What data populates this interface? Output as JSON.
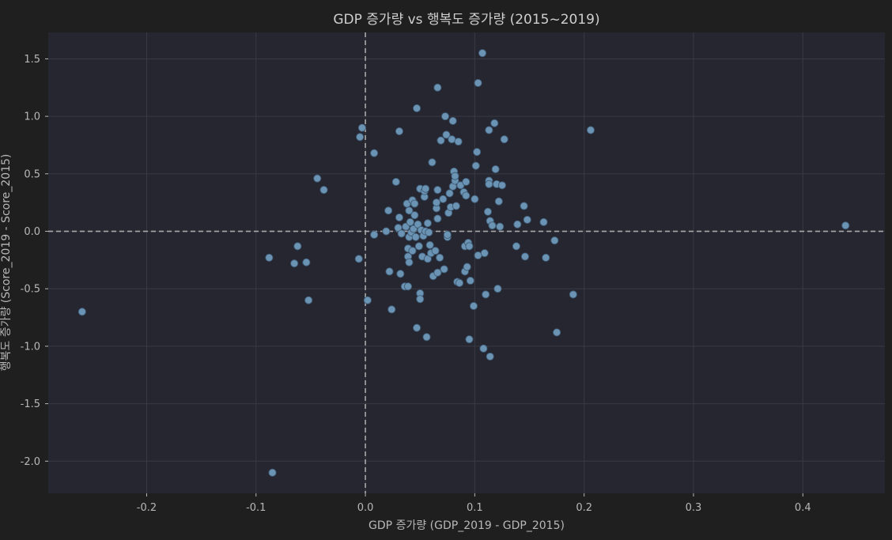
{
  "chart_data": {
    "type": "scatter",
    "title": "GDP 증가량 vs 행복도 증가량 (2015~2019)",
    "xlabel": "GDP 증가량 (GDP_2019 - GDP_2015)",
    "ylabel": "행복도 증가량 (Score_2019 - Score_2015)",
    "xlim": [
      -0.29,
      0.475
    ],
    "ylim": [
      -2.28,
      1.73
    ],
    "xticks": [
      -0.2,
      -0.1,
      0.0,
      0.1,
      0.2,
      0.3,
      0.4
    ],
    "xtick_labels": [
      "-0.2",
      "-0.1",
      "0.0",
      "0.1",
      "0.2",
      "0.3",
      "0.4"
    ],
    "yticks": [
      1.5,
      1.0,
      0.5,
      0.0,
      -0.5,
      -1.0,
      -1.5,
      -2.0
    ],
    "ytick_labels": [
      "1.5",
      "1.0",
      "0.5",
      "0.0",
      "-0.5",
      "-1.0",
      "-1.5",
      "-2.0"
    ],
    "grid": true,
    "reference_lines": {
      "x": 0,
      "y": 0
    },
    "colors": {
      "figure_bg": "#1f1f1f",
      "axes_bg": "#262631",
      "grid": "#3a3a44",
      "point_fill": "#6a93b4",
      "point_edge": "#3f5a73",
      "ref_line": "#aaaaaa",
      "text": "#b8b8b8",
      "title": "#cfcfcf"
    },
    "points": [
      [
        -0.259,
        -0.7
      ],
      [
        -0.085,
        -2.1
      ],
      [
        -0.088,
        -0.23
      ],
      [
        -0.062,
        -0.13
      ],
      [
        -0.065,
        -0.28
      ],
      [
        -0.054,
        -0.27
      ],
      [
        -0.052,
        -0.6
      ],
      [
        -0.044,
        0.46
      ],
      [
        -0.038,
        0.36
      ],
      [
        -0.006,
        -0.24
      ],
      [
        -0.005,
        0.82
      ],
      [
        -0.003,
        0.9
      ],
      [
        0.002,
        -0.6
      ],
      [
        0.008,
        0.68
      ],
      [
        0.008,
        -0.03
      ],
      [
        0.019,
        0.0
      ],
      [
        0.021,
        0.18
      ],
      [
        0.022,
        -0.35
      ],
      [
        0.024,
        -0.68
      ],
      [
        0.028,
        0.43
      ],
      [
        0.03,
        0.03
      ],
      [
        0.031,
        0.12
      ],
      [
        0.031,
        0.87
      ],
      [
        0.032,
        -0.37
      ],
      [
        0.033,
        -0.02
      ],
      [
        0.036,
        -0.48
      ],
      [
        0.037,
        0.04
      ],
      [
        0.038,
        0.24
      ],
      [
        0.039,
        -0.48
      ],
      [
        0.039,
        -0.15
      ],
      [
        0.039,
        -0.22
      ],
      [
        0.04,
        -0.27
      ],
      [
        0.04,
        -0.05
      ],
      [
        0.04,
        0.18
      ],
      [
        0.041,
        0.08
      ],
      [
        0.042,
        -0.01
      ],
      [
        0.043,
        -0.17
      ],
      [
        0.043,
        0.27
      ],
      [
        0.044,
        0.02
      ],
      [
        0.045,
        0.14
      ],
      [
        0.045,
        0.24
      ],
      [
        0.046,
        -0.05
      ],
      [
        0.047,
        -0.84
      ],
      [
        0.047,
        1.07
      ],
      [
        0.048,
        0.06
      ],
      [
        0.049,
        -0.13
      ],
      [
        0.05,
        -0.54
      ],
      [
        0.05,
        -0.59
      ],
      [
        0.05,
        0.37
      ],
      [
        0.051,
        0.01
      ],
      [
        0.052,
        -0.22
      ],
      [
        0.053,
        -0.04
      ],
      [
        0.054,
        0.3
      ],
      [
        0.054,
        0.35
      ],
      [
        0.055,
        0.37
      ],
      [
        0.055,
        0.0
      ],
      [
        0.056,
        -0.92
      ],
      [
        0.057,
        -0.24
      ],
      [
        0.057,
        0.07
      ],
      [
        0.058,
        -0.01
      ],
      [
        0.059,
        -0.12
      ],
      [
        0.06,
        -0.19
      ],
      [
        0.061,
        0.6
      ],
      [
        0.062,
        -0.39
      ],
      [
        0.064,
        -0.17
      ],
      [
        0.065,
        0.2
      ],
      [
        0.065,
        0.25
      ],
      [
        0.066,
        0.36
      ],
      [
        0.066,
        0.11
      ],
      [
        0.066,
        1.25
      ],
      [
        0.066,
        -0.36
      ],
      [
        0.068,
        -0.23
      ],
      [
        0.069,
        0.79
      ],
      [
        0.071,
        0.28
      ],
      [
        0.072,
        -0.33
      ],
      [
        0.073,
        1.0
      ],
      [
        0.074,
        0.84
      ],
      [
        0.075,
        -0.05
      ],
      [
        0.075,
        -0.03
      ],
      [
        0.076,
        0.16
      ],
      [
        0.077,
        0.33
      ],
      [
        0.078,
        0.21
      ],
      [
        0.079,
        0.8
      ],
      [
        0.08,
        0.96
      ],
      [
        0.08,
        0.39
      ],
      [
        0.081,
        0.52
      ],
      [
        0.082,
        0.44
      ],
      [
        0.082,
        0.48
      ],
      [
        0.083,
        0.22
      ],
      [
        0.084,
        -0.44
      ],
      [
        0.085,
        0.78
      ],
      [
        0.086,
        -0.45
      ],
      [
        0.087,
        0.4
      ],
      [
        0.09,
        0.34
      ],
      [
        0.091,
        -0.13
      ],
      [
        0.091,
        -0.35
      ],
      [
        0.092,
        0.31
      ],
      [
        0.092,
        0.43
      ],
      [
        0.093,
        -0.31
      ],
      [
        0.094,
        -0.1
      ],
      [
        0.095,
        -0.94
      ],
      [
        0.095,
        -0.13
      ],
      [
        0.096,
        -0.43
      ],
      [
        0.099,
        -0.65
      ],
      [
        0.1,
        0.28
      ],
      [
        0.101,
        0.57
      ],
      [
        0.102,
        0.69
      ],
      [
        0.103,
        -0.21
      ],
      [
        0.103,
        1.29
      ],
      [
        0.107,
        1.55
      ],
      [
        0.108,
        -1.02
      ],
      [
        0.109,
        -0.19
      ],
      [
        0.11,
        -0.55
      ],
      [
        0.112,
        0.17
      ],
      [
        0.113,
        0.44
      ],
      [
        0.113,
        0.41
      ],
      [
        0.113,
        0.88
      ],
      [
        0.114,
        -1.09
      ],
      [
        0.114,
        0.09
      ],
      [
        0.116,
        0.05
      ],
      [
        0.118,
        0.94
      ],
      [
        0.119,
        0.54
      ],
      [
        0.12,
        0.41
      ],
      [
        0.121,
        -0.5
      ],
      [
        0.122,
        0.26
      ],
      [
        0.123,
        0.04
      ],
      [
        0.125,
        0.4
      ],
      [
        0.127,
        0.8
      ],
      [
        0.138,
        -0.13
      ],
      [
        0.139,
        0.06
      ],
      [
        0.145,
        0.22
      ],
      [
        0.146,
        -0.22
      ],
      [
        0.148,
        0.1
      ],
      [
        0.163,
        0.08
      ],
      [
        0.165,
        -0.23
      ],
      [
        0.173,
        -0.08
      ],
      [
        0.175,
        -0.88
      ],
      [
        0.19,
        -0.55
      ],
      [
        0.206,
        0.88
      ],
      [
        0.439,
        0.05
      ]
    ]
  }
}
